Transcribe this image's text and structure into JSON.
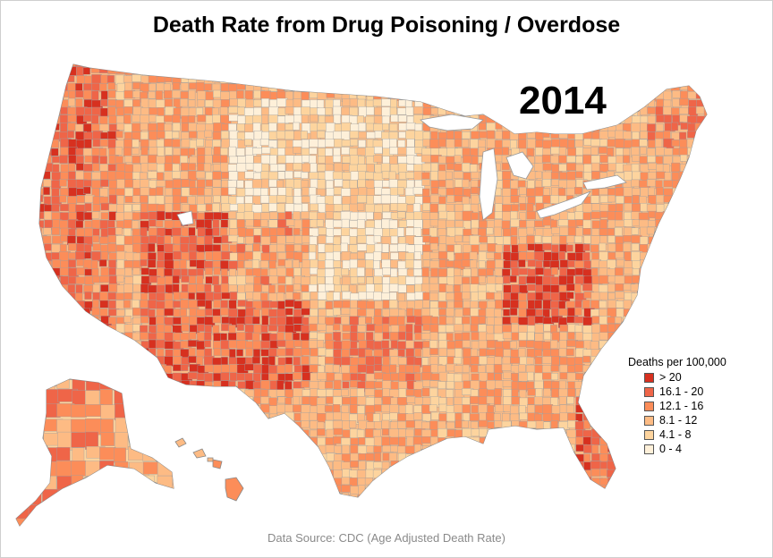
{
  "title": "Death Rate from Drug Poisoning / Overdose",
  "year": "2014",
  "source": "Data Source: CDC (Age Adjusted Death Rate)",
  "legend": {
    "title": "Deaths per 100,000",
    "classes": [
      {
        "label": "> 20",
        "color": "#d7301f"
      },
      {
        "label": "16.1 - 20",
        "color": "#ef6548"
      },
      {
        "label": "12.1 - 16",
        "color": "#fc8d59"
      },
      {
        "label": "8.1 - 12",
        "color": "#fdbb84"
      },
      {
        "label": "4.1 - 8",
        "color": "#fdd49e"
      },
      {
        "label": "0 - 4",
        "color": "#fef0d9"
      }
    ]
  },
  "colors": {
    "county_border": "#a0a0a0",
    "frame_border": "#cfcfcf",
    "source_text": "#8a8a8a"
  }
}
